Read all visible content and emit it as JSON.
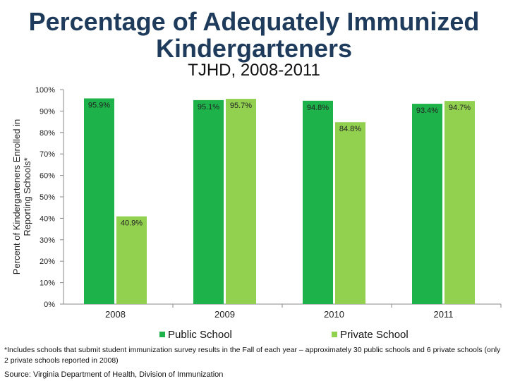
{
  "chart_data": {
    "type": "bar",
    "title": "Percentage of Adequately Immunized Kindergarteners",
    "subtitle": "TJHD, 2008-2011",
    "ylabel": "Percent of Kindergarteners Enrolled in Reporting Schools*",
    "xlabel": "",
    "categories": [
      "2008",
      "2009",
      "2010",
      "2011"
    ],
    "series": [
      {
        "name": "Public School",
        "color": "#1db34a",
        "values": [
          95.9,
          95.1,
          94.8,
          93.4
        ],
        "labels": [
          "95.9%",
          "95.1%",
          "94.8%",
          "93.4%"
        ]
      },
      {
        "name": "Private School",
        "color": "#92d050",
        "values": [
          40.9,
          95.7,
          84.8,
          94.7
        ],
        "labels": [
          "40.9%",
          "95.7%",
          "84.8%",
          "94.7%"
        ]
      }
    ],
    "ylim": [
      0,
      100
    ],
    "yticks": [
      "0%",
      "10%",
      "20%",
      "30%",
      "40%",
      "50%",
      "60%",
      "70%",
      "80%",
      "90%",
      "100%"
    ],
    "legend_position": "bottom",
    "grid": false
  },
  "footnote": "*Includes schools that submit student immunization survey results in the Fall of each year – approximately 30 public schools and 6 private schools (only 2 private schools reported in 2008)",
  "source": "Source: Virginia Department of Health, Division of Immunization"
}
